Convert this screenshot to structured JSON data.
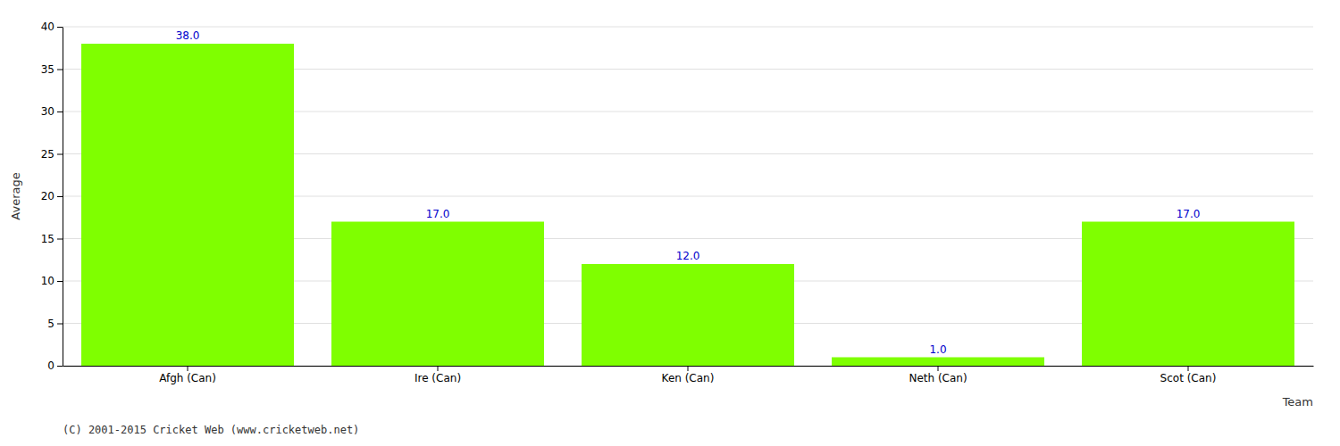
{
  "chart_data": {
    "type": "bar",
    "categories": [
      "Afgh (Can)",
      "Ire (Can)",
      "Ken (Can)",
      "Neth (Can)",
      "Scot (Can)"
    ],
    "values": [
      38.0,
      17.0,
      12.0,
      1.0,
      17.0
    ],
    "value_labels": [
      "38.0",
      "17.0",
      "12.0",
      "1.0",
      "17.0"
    ],
    "data_labels": true,
    "color": "#7fff00",
    "xlabel": "Team",
    "ylabel": "Average",
    "ylim": [
      0,
      40
    ],
    "yticks": [
      0,
      5,
      10,
      15,
      20,
      25,
      30,
      35,
      40
    ],
    "grid": true,
    "annotations": [
      "(C) 2001-2015 Cricket Web (www.cricketweb.net)"
    ]
  }
}
